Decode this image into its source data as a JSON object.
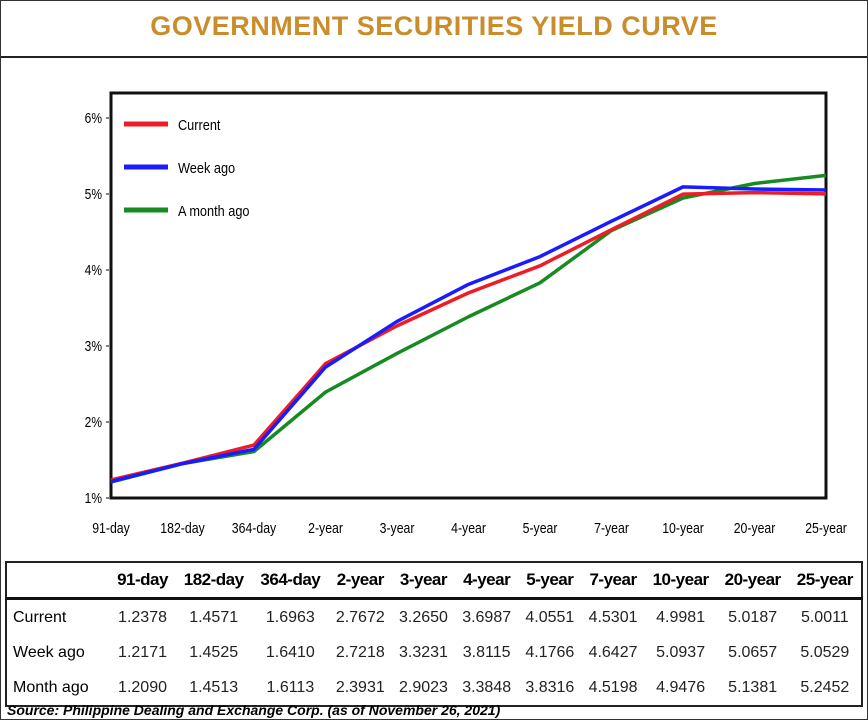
{
  "chart_data": {
    "type": "line",
    "title": "GOVERNMENT SECURITIES YIELD CURVE",
    "categories": [
      "91-day",
      "182-day",
      "364-day",
      "2-year",
      "3-year",
      "4-year",
      "5-year",
      "7-year",
      "10-year",
      "20-year",
      "25-year"
    ],
    "ylim": [
      1,
      6
    ],
    "yticks": [
      "1%",
      "2%",
      "3%",
      "4%",
      "5%",
      "6%"
    ],
    "grid": false,
    "legend_placement": "top-left",
    "series": [
      {
        "name": "Current",
        "color": "#ee1c24",
        "values": [
          1.2378,
          1.4571,
          1.6963,
          2.7672,
          3.265,
          3.6987,
          4.0551,
          4.5301,
          4.9981,
          5.0187,
          5.0011
        ]
      },
      {
        "name": "Week ago",
        "color": "#1b1bff",
        "values": [
          1.2171,
          1.4525,
          1.641,
          2.7218,
          3.3231,
          3.8115,
          4.1766,
          4.6427,
          5.0937,
          5.0657,
          5.0529
        ]
      },
      {
        "name": "A month ago",
        "color": "#178a22",
        "values": [
          1.209,
          1.4513,
          1.6113,
          2.3931,
          2.9023,
          3.3848,
          3.8316,
          4.5198,
          4.9476,
          5.1381,
          5.2452
        ]
      }
    ]
  },
  "table": {
    "headers": [
      "",
      "91-day",
      "182-day",
      "364-day",
      "2-year",
      "3-year",
      "4-year",
      "5-year",
      "7-year",
      "10-year",
      "20-year",
      "25-year"
    ],
    "rows": [
      {
        "label": "Current",
        "values": [
          "1.2378",
          "1.4571",
          "1.6963",
          "2.7672",
          "3.2650",
          "3.6987",
          "4.0551",
          "4.5301",
          "4.9981",
          "5.0187",
          "5.0011"
        ]
      },
      {
        "label": "Week ago",
        "values": [
          "1.2171",
          "1.4525",
          "1.6410",
          "2.7218",
          "3.3231",
          "3.8115",
          "4.1766",
          "4.6427",
          "5.0937",
          "5.0657",
          "5.0529"
        ]
      },
      {
        "label": "Month ago",
        "values": [
          "1.2090",
          "1.4513",
          "1.6113",
          "2.3931",
          "2.9023",
          "3.3848",
          "3.8316",
          "4.5198",
          "4.9476",
          "5.1381",
          "5.2452"
        ]
      }
    ]
  },
  "source": "Source: Philippine Dealing and Exchange Corp. (as of November  26, 2021)"
}
